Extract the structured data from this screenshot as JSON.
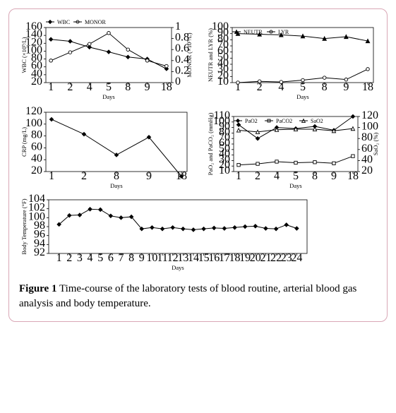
{
  "caption": {
    "label": "Figure 1",
    "text": " Time-course of the laboratory tests of blood routine, arterial blood gas analysis and body temperature."
  },
  "charts": {
    "wbc_monor": {
      "type": "line-dual-y",
      "x": [
        1,
        2,
        4,
        5,
        8,
        9,
        18
      ],
      "series": [
        {
          "name": "WBC",
          "marker": "diamond-fill",
          "y": [
            130,
            125,
            110,
            98,
            85,
            80,
            55
          ],
          "axis": "left"
        },
        {
          "name": "MONOR",
          "marker": "circle-open",
          "y": [
            0.4,
            0.55,
            0.7,
            0.9,
            0.6,
            0.4,
            0.3
          ],
          "axis": "right"
        }
      ],
      "x_ticks": [
        1,
        2,
        4,
        5,
        8,
        9,
        18
      ],
      "y_left": {
        "label": "WBC (×10⁹/L)",
        "ticks": [
          20,
          40,
          60,
          80,
          100,
          120,
          140,
          160
        ]
      },
      "y_right": {
        "label": "MONOR (×10⁹/L)",
        "ticks": [
          0.0,
          0.2,
          0.4,
          0.6,
          0.8,
          1.0
        ]
      },
      "x_label": "Days"
    },
    "neutr_lyr": {
      "type": "line",
      "x": [
        1,
        2,
        4,
        5,
        8,
        9,
        18
      ],
      "series": [
        {
          "name": "NEUTR",
          "marker": "triangle-fill",
          "y": [
            90,
            89,
            88,
            86,
            82,
            85,
            78
          ]
        },
        {
          "name": "LYR",
          "marker": "circle-open",
          "y": [
            10,
            12,
            11,
            14,
            18,
            15,
            32
          ]
        }
      ],
      "x_ticks": [
        1,
        2,
        4,
        5,
        8,
        9,
        18
      ],
      "y": {
        "label": "NEUTR and LYR (%)",
        "ticks": [
          10,
          20,
          30,
          40,
          50,
          60,
          70,
          80,
          90,
          100
        ]
      },
      "x_label": "Days"
    },
    "crp": {
      "type": "line",
      "x": [
        1,
        2,
        8,
        9,
        18
      ],
      "series": [
        {
          "name": "CRP",
          "marker": "diamond-fill",
          "y": [
            108,
            83,
            48,
            78,
            12
          ]
        }
      ],
      "x_ticks": [
        1,
        2,
        8,
        9,
        18
      ],
      "y": {
        "label": "CRP (mg/L)",
        "ticks": [
          20,
          40,
          60,
          80,
          100,
          120
        ]
      },
      "x_label": "Days"
    },
    "gas": {
      "type": "line-dual-y",
      "x": [
        1,
        2,
        4,
        5,
        8,
        9,
        18
      ],
      "series": [
        {
          "name": "PaO2",
          "marker": "diamond-fill",
          "y": [
            95,
            70,
            90,
            88,
            92,
            85,
            110
          ],
          "axis": "left"
        },
        {
          "name": "PaCO2",
          "marker": "square-open",
          "y": [
            22,
            24,
            28,
            26,
            27,
            25,
            38
          ],
          "axis": "left"
        },
        {
          "name": "SaO2",
          "marker": "triangle-open",
          "y": [
            95,
            92,
            96,
            97,
            97,
            94,
            98
          ],
          "axis": "right"
        }
      ],
      "x_ticks": [
        1,
        2,
        4,
        5,
        8,
        9,
        18
      ],
      "y_left": {
        "label": "PaO₂ and PaCO₂ (mmHg)",
        "ticks": [
          10,
          20,
          30,
          40,
          50,
          60,
          70,
          80,
          90,
          100,
          110
        ]
      },
      "y_right": {
        "label": "SaO₂ (%)",
        "ticks": [
          20,
          40,
          60,
          80,
          100,
          120
        ]
      },
      "x_label": "Days"
    },
    "temp": {
      "type": "line",
      "x": [
        1,
        2,
        3,
        4,
        5,
        6,
        7,
        8,
        9,
        10,
        11,
        12,
        13,
        14,
        15,
        16,
        17,
        18,
        19,
        20,
        21,
        22,
        23,
        24
      ],
      "series": [
        {
          "name": "Body Temperature",
          "marker": "diamond-fill",
          "y": [
            98.5,
            100.5,
            100.6,
            101.9,
            101.8,
            100.4,
            100.0,
            100.2,
            97.5,
            97.8,
            97.5,
            97.8,
            97.5,
            97.3,
            97.5,
            97.7,
            97.6,
            97.8,
            98.0,
            98.1,
            97.6,
            97.5,
            98.4,
            97.6
          ]
        }
      ],
      "x_ticks": [
        1,
        2,
        3,
        4,
        5,
        6,
        7,
        8,
        9,
        10,
        11,
        12,
        13,
        14,
        15,
        16,
        17,
        18,
        19,
        20,
        21,
        22,
        23,
        24
      ],
      "y": {
        "label": "Body Temperature (°F)",
        "ticks": [
          92,
          94,
          96,
          98,
          100,
          102,
          104
        ]
      },
      "x_label": "Days"
    }
  },
  "style": {
    "border_color": "#d9a7b6",
    "series_color": "#000000",
    "background": "#ffffff",
    "tick_fontsize": 8,
    "axis_label_fontsize": 8.5
  }
}
